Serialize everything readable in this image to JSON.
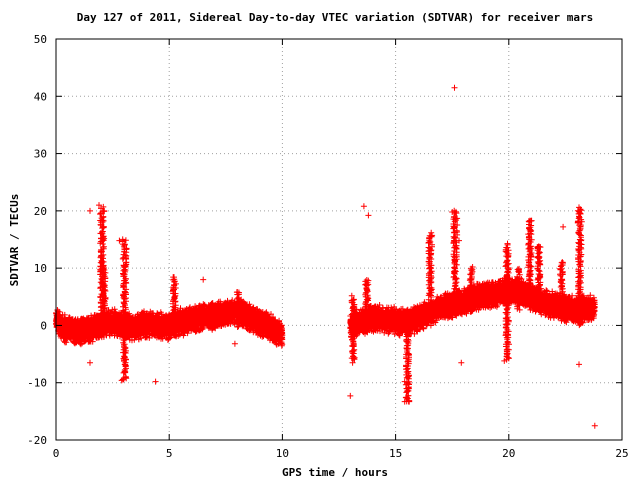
{
  "chart_data": {
    "type": "scatter",
    "title": "Day 127 of 2011, Sidereal Day-to-day VTEC variation (SDTVAR) for receiver mars",
    "xlabel": "GPS time / hours",
    "ylabel": "SDTVAR / TECUs",
    "xlim": [
      0,
      25
    ],
    "ylim": [
      -20,
      50
    ],
    "xticks": [
      0,
      5,
      10,
      15,
      20,
      25
    ],
    "yticks": [
      -20,
      -10,
      0,
      10,
      20,
      30,
      40,
      50
    ],
    "grid": true,
    "legend": "none",
    "marker": "plus",
    "color": "#ff0000",
    "baseline": [
      [
        0.0,
        1.5
      ],
      [
        0.3,
        -0.5
      ],
      [
        1.0,
        -1.0
      ],
      [
        1.5,
        -0.7
      ],
      [
        2.0,
        0.0
      ],
      [
        2.5,
        0.6
      ],
      [
        3.0,
        0.0
      ],
      [
        3.5,
        -0.3
      ],
      [
        4.0,
        0.2
      ],
      [
        4.5,
        0.0
      ],
      [
        5.0,
        -0.2
      ],
      [
        5.5,
        0.6
      ],
      [
        6.0,
        1.0
      ],
      [
        6.5,
        1.5
      ],
      [
        7.0,
        1.8
      ],
      [
        7.5,
        2.2
      ],
      [
        8.0,
        2.4
      ],
      [
        8.5,
        1.5
      ],
      [
        9.0,
        0.6
      ],
      [
        9.5,
        -0.4
      ],
      [
        10.0,
        -1.5
      ],
      [
        13.0,
        0.0
      ],
      [
        13.5,
        0.6
      ],
      [
        14.0,
        1.3
      ],
      [
        14.5,
        1.0
      ],
      [
        15.0,
        0.7
      ],
      [
        15.5,
        0.6
      ],
      [
        16.0,
        1.2
      ],
      [
        16.5,
        2.2
      ],
      [
        17.0,
        3.0
      ],
      [
        17.5,
        3.7
      ],
      [
        18.0,
        4.2
      ],
      [
        18.5,
        4.8
      ],
      [
        19.0,
        5.2
      ],
      [
        19.5,
        5.6
      ],
      [
        20.0,
        6.0
      ],
      [
        20.5,
        5.8
      ],
      [
        21.0,
        5.0
      ],
      [
        21.5,
        4.0
      ],
      [
        22.0,
        3.5
      ],
      [
        22.5,
        3.0
      ],
      [
        23.0,
        2.8
      ],
      [
        23.5,
        3.0
      ],
      [
        23.8,
        3.3
      ]
    ],
    "spread": 1.8,
    "spikes": [
      [
        2.0,
        -2.0,
        20.5
      ],
      [
        2.1,
        0.0,
        11.0
      ],
      [
        3.0,
        -9.5,
        15.0
      ],
      [
        5.2,
        0.0,
        8.5
      ],
      [
        8.0,
        0.0,
        6.0
      ],
      [
        13.1,
        -6.0,
        5.0
      ],
      [
        13.7,
        0.0,
        8.0
      ],
      [
        15.5,
        -13.5,
        0.0
      ],
      [
        16.5,
        2.0,
        16.0
      ],
      [
        17.6,
        3.0,
        20.0
      ],
      [
        18.3,
        3.0,
        10.0
      ],
      [
        19.9,
        -6.0,
        14.0
      ],
      [
        20.4,
        3.0,
        10.0
      ],
      [
        20.9,
        5.0,
        18.5
      ],
      [
        21.3,
        4.0,
        14.0
      ],
      [
        22.3,
        3.0,
        11.0
      ],
      [
        23.1,
        0.0,
        20.5
      ]
    ],
    "outliers": [
      [
        1.5,
        20.0
      ],
      [
        1.9,
        21.0
      ],
      [
        2.8,
        14.8
      ],
      [
        4.4,
        -9.8
      ],
      [
        13.0,
        -12.3
      ],
      [
        13.1,
        -6.5
      ],
      [
        13.6,
        20.8
      ],
      [
        13.8,
        19.2
      ],
      [
        15.4,
        -9.8
      ],
      [
        15.4,
        -13.3
      ],
      [
        17.6,
        41.5
      ],
      [
        17.5,
        19.8
      ],
      [
        17.8,
        14.8
      ],
      [
        17.9,
        -6.5
      ],
      [
        18.4,
        10.2
      ],
      [
        19.8,
        -6.2
      ],
      [
        22.4,
        17.2
      ],
      [
        23.1,
        20.6
      ],
      [
        23.1,
        -6.8
      ],
      [
        23.8,
        -17.5
      ],
      [
        7.9,
        -3.2
      ],
      [
        1.5,
        -6.5
      ],
      [
        2.9,
        -9.6
      ],
      [
        6.5,
        8.0
      ]
    ]
  }
}
